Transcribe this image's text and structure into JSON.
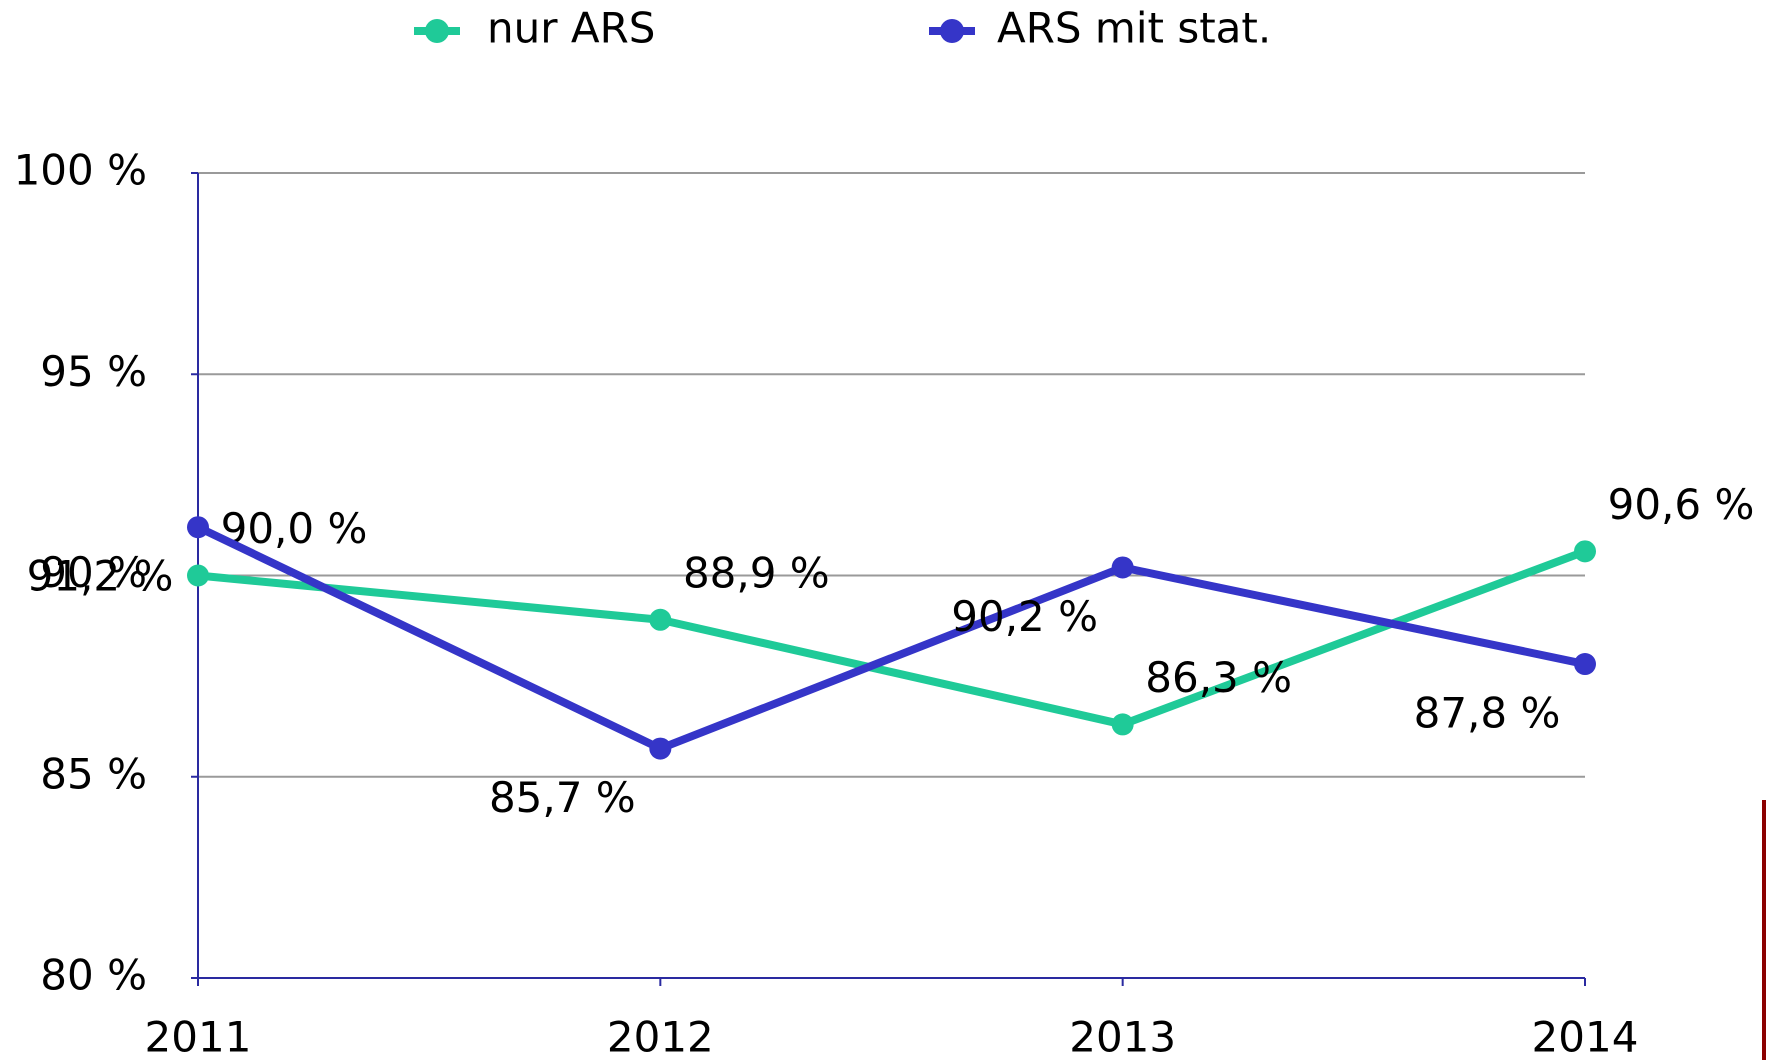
{
  "chart_data": {
    "type": "line",
    "categories": [
      "2011",
      "2012",
      "2013",
      "2014"
    ],
    "series": [
      {
        "name": "nur ARS",
        "color": "#1fca98",
        "values": [
          90.0,
          88.9,
          86.3,
          90.6
        ],
        "value_labels": [
          "90,0 %",
          "88,9 %",
          "86,3 %",
          "90,6 %"
        ]
      },
      {
        "name": "ARS mit stat.",
        "color": "#3535c8",
        "values": [
          91.2,
          85.7,
          90.2,
          87.8
        ],
        "value_labels": [
          "91,2 %",
          "85,7 %",
          "90,2 %",
          "87,8 %"
        ]
      }
    ],
    "ylim": [
      80,
      100
    ],
    "yticks": [
      {
        "value": 80,
        "label": "80 %"
      },
      {
        "value": 85,
        "label": "85 %"
      },
      {
        "value": 90,
        "label": "90 %"
      },
      {
        "value": 95,
        "label": "95 %"
      },
      {
        "value": 100,
        "label": "100 %"
      }
    ],
    "grid": true,
    "legend": "top"
  }
}
